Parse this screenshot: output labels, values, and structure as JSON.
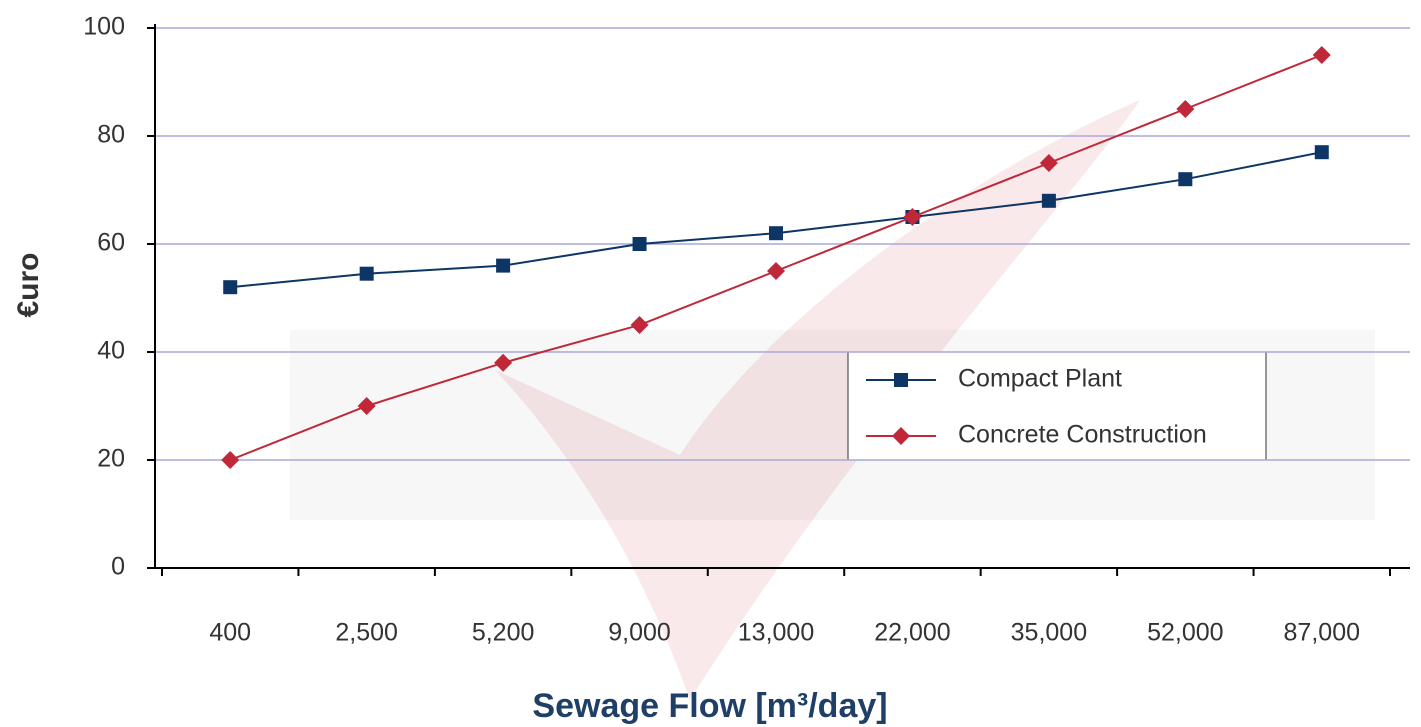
{
  "chart_data": {
    "type": "line",
    "x_label": "Sewage Flow [m³/day]",
    "y_label": "€uro",
    "categories": [
      "400",
      "2,500",
      "5,200",
      "9,000",
      "13,000",
      "22,000",
      "35,000",
      "52,000",
      "87,000"
    ],
    "series": [
      {
        "name": "Compact Plant",
        "color": "#0d3566",
        "marker": "square",
        "values": [
          52,
          54.5,
          56,
          60,
          62,
          65,
          68,
          72,
          77
        ]
      },
      {
        "name": "Concrete Construction",
        "color": "#c0283a",
        "marker": "diamond",
        "values": [
          20,
          30,
          38,
          45,
          55,
          65,
          75,
          85,
          95
        ]
      }
    ],
    "ylim": [
      0,
      100
    ],
    "yticks": [
      0,
      20,
      40,
      60,
      80,
      100
    ],
    "grid": true
  }
}
